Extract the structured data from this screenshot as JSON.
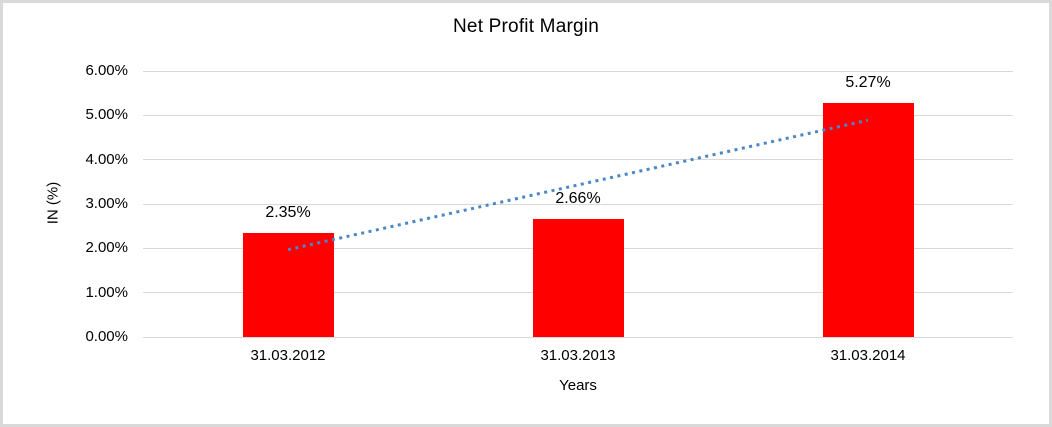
{
  "frame": {
    "border_color": "#d9d9d9",
    "background": "#ffffff"
  },
  "chart_data": {
    "type": "bar",
    "title": "Net Profit Margin",
    "xlabel": "Years",
    "ylabel": "IN (%)",
    "categories": [
      "31.03.2012",
      "31.03.2013",
      "31.03.2014"
    ],
    "values": [
      2.35,
      2.66,
      5.27
    ],
    "data_labels": [
      "2.35%",
      "2.66%",
      "5.27%"
    ],
    "ylim": [
      0,
      6
    ],
    "ytick_values": [
      0,
      1,
      2,
      3,
      4,
      5,
      6
    ],
    "ytick_labels": [
      "0.00%",
      "1.00%",
      "2.00%",
      "3.00%",
      "4.00%",
      "5.00%",
      "6.00%"
    ],
    "grid": true,
    "legend": "none",
    "bar_color": "#ff0000",
    "gridline_color": "#d9d9d9",
    "trendline": {
      "type": "linear",
      "style": "dotted",
      "color": "#4a86c8",
      "start_value": 1.97,
      "end_value": 4.89
    }
  }
}
